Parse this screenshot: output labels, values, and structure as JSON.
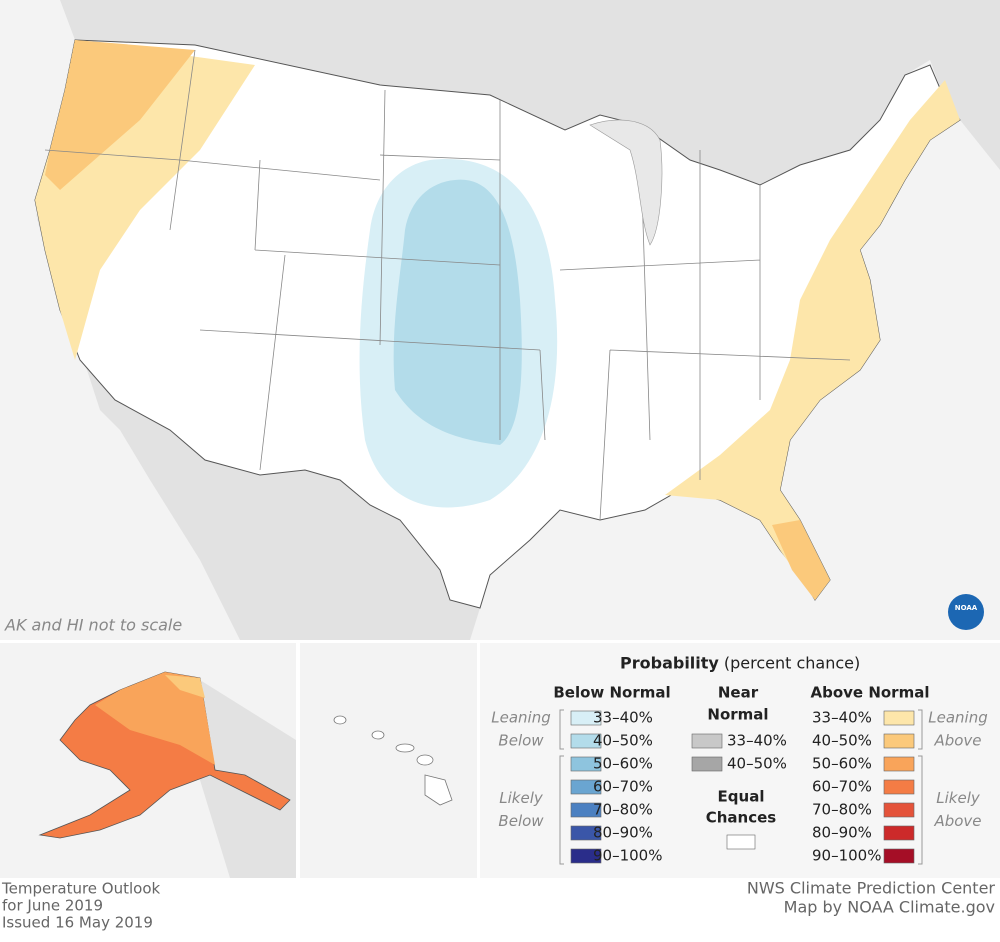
{
  "map_note": "AK and HI not to scale",
  "logo": "NOAA",
  "legend": {
    "title": "Probability",
    "subtitle": "(percent chance)",
    "below_normal": {
      "heading": "Below Normal",
      "leaning": [
        "Leaning",
        "Below"
      ],
      "likely": [
        "Likely",
        "Below"
      ],
      "classes": [
        {
          "label": "33–40%",
          "color": "#d8eff6"
        },
        {
          "label": "40–50%",
          "color": "#b3dcea"
        },
        {
          "label": "50–60%",
          "color": "#8ec4de"
        },
        {
          "label": "60–70%",
          "color": "#6aa5d1"
        },
        {
          "label": "70–80%",
          "color": "#4b80c1"
        },
        {
          "label": "80–90%",
          "color": "#3a56a8"
        },
        {
          "label": "90–100%",
          "color": "#2a2d8a"
        }
      ]
    },
    "near_normal": {
      "heading": [
        "Near",
        "Normal"
      ],
      "classes": [
        {
          "label": "33–40%",
          "color": "#c8c8c8"
        },
        {
          "label": "40–50%",
          "color": "#a6a6a6"
        }
      ]
    },
    "equal_chances": {
      "heading": [
        "Equal",
        "Chances"
      ],
      "color": "#ffffff"
    },
    "above_normal": {
      "heading": "Above Normal",
      "leaning": [
        "Leaning",
        "Above"
      ],
      "likely": [
        "Likely",
        "Above"
      ],
      "classes": [
        {
          "label": "33–40%",
          "color": "#fde6aa"
        },
        {
          "label": "40–50%",
          "color": "#fbc97b"
        },
        {
          "label": "50–60%",
          "color": "#f9a45a"
        },
        {
          "label": "60–70%",
          "color": "#f47c45"
        },
        {
          "label": "70–80%",
          "color": "#e4533a"
        },
        {
          "label": "80–90%",
          "color": "#cc2a2a"
        },
        {
          "label": "90–100%",
          "color": "#a50e26"
        }
      ]
    }
  },
  "footer": {
    "left": [
      "Temperature Outlook",
      "for June 2019",
      "Issued 16 May 2019"
    ],
    "right": [
      "NWS Climate Prediction Center",
      "Map by NOAA Climate.gov"
    ]
  }
}
